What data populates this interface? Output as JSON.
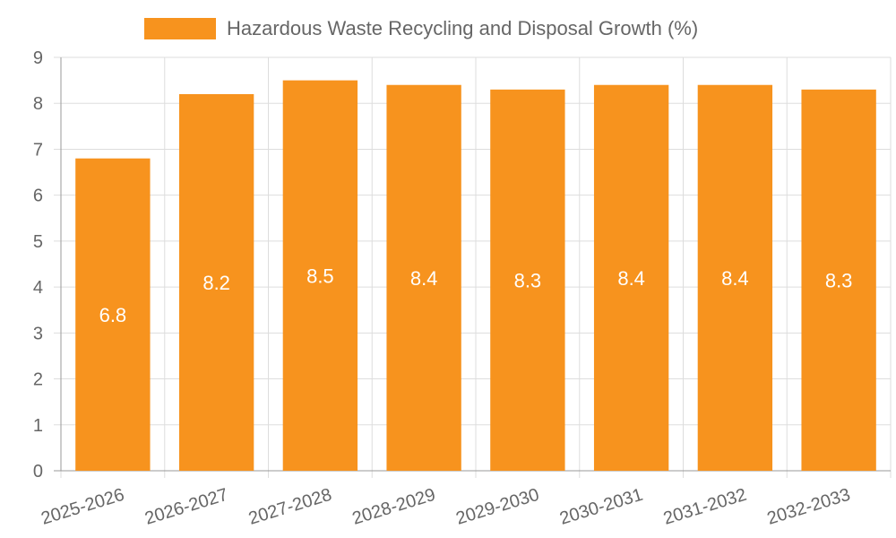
{
  "colors": {
    "bar": "#f7931e",
    "grid": "#dddddd",
    "text": "#666666"
  },
  "chart_data": {
    "type": "bar",
    "title": "",
    "xlabel": "",
    "ylabel": "",
    "ylim": [
      0,
      9
    ],
    "yticks": [
      0,
      1,
      2,
      3,
      4,
      5,
      6,
      7,
      8,
      9
    ],
    "categories": [
      "2025-2026",
      "2026-2027",
      "2027-2028",
      "2028-2029",
      "2029-2030",
      "2030-2031",
      "2031-2032",
      "2032-2033"
    ],
    "series": [
      {
        "name": "Hazardous Waste Recycling and Disposal Growth (%)",
        "values": [
          6.8,
          8.2,
          8.5,
          8.4,
          8.3,
          8.4,
          8.4,
          8.3
        ]
      }
    ],
    "legend": "top",
    "grid": true,
    "data_labels": true
  }
}
